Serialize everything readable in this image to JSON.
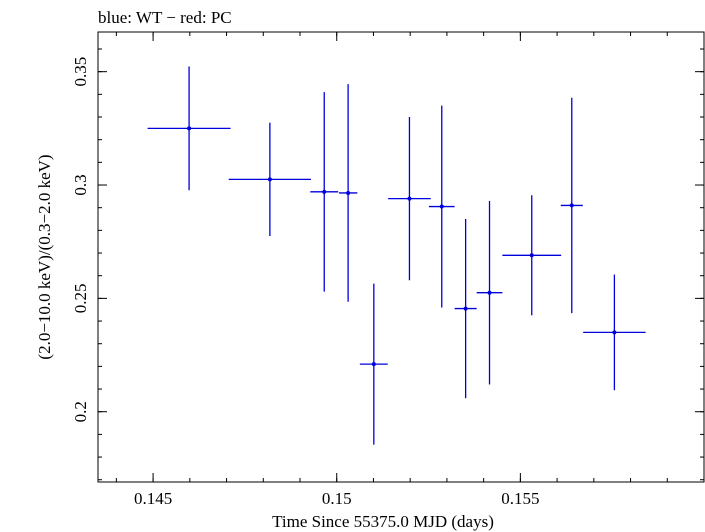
{
  "chart_data": {
    "type": "scatter",
    "title": "blue: WT − red: PC",
    "xlabel": "Time Since 55375.0 MJD (days)",
    "ylabel": "(2.0−10.0 keV)/(0.3−2.0 keV)",
    "xlim": [
      0.1435,
      0.16
    ],
    "ylim": [
      0.169,
      0.3675
    ],
    "xticks": [
      {
        "value": 0.145,
        "label": "0.145"
      },
      {
        "value": 0.15,
        "label": "0.15"
      },
      {
        "value": 0.155,
        "label": "0.155"
      }
    ],
    "yticks": [
      {
        "value": 0.2,
        "label": "0.2"
      },
      {
        "value": 0.25,
        "label": "0.25"
      },
      {
        "value": 0.3,
        "label": "0.3"
      },
      {
        "value": 0.35,
        "label": "0.35"
      }
    ],
    "x_minor_step": 0.001,
    "y_minor_step": 0.01,
    "grid": false,
    "series": [
      {
        "name": "WT",
        "color": "#0000dd",
        "points": [
          {
            "x": 0.14598,
            "xerr": 0.00113,
            "y": 0.325,
            "yerr": 0.0273
          },
          {
            "x": 0.14818,
            "xerr": 0.00112,
            "y": 0.3025,
            "yerr": 0.025
          },
          {
            "x": 0.14966,
            "xerr": 0.00038,
            "y": 0.297,
            "yerr": 0.044
          },
          {
            "x": 0.15031,
            "xerr": 0.00025,
            "y": 0.2965,
            "yerr": 0.048
          },
          {
            "x": 0.15101,
            "xerr": 0.00038,
            "y": 0.221,
            "yerr": 0.0355
          },
          {
            "x": 0.15198,
            "xerr": 0.00058,
            "y": 0.294,
            "yerr": 0.036
          },
          {
            "x": 0.15286,
            "xerr": 0.00035,
            "y": 0.2905,
            "yerr": 0.0445
          },
          {
            "x": 0.15351,
            "xerr": 0.0003,
            "y": 0.2455,
            "yerr": 0.0395
          },
          {
            "x": 0.15416,
            "xerr": 0.00035,
            "y": 0.2525,
            "yerr": 0.0405
          },
          {
            "x": 0.15531,
            "xerr": 0.0008,
            "y": 0.269,
            "yerr": 0.0265
          },
          {
            "x": 0.1564,
            "xerr": 0.0003,
            "y": 0.291,
            "yerr": 0.0475
          },
          {
            "x": 0.15756,
            "xerr": 0.00085,
            "y": 0.235,
            "yerr": 0.0255
          }
        ]
      }
    ]
  }
}
